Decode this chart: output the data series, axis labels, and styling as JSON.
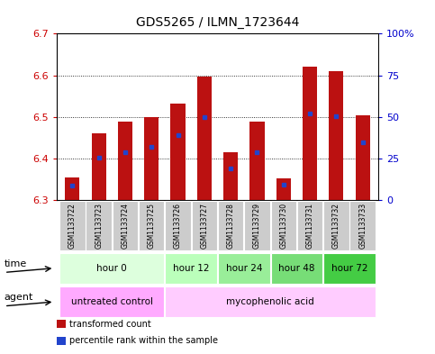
{
  "title": "GDS5265 / ILMN_1723644",
  "samples": [
    "GSM1133722",
    "GSM1133723",
    "GSM1133724",
    "GSM1133725",
    "GSM1133726",
    "GSM1133727",
    "GSM1133728",
    "GSM1133729",
    "GSM1133730",
    "GSM1133731",
    "GSM1133732",
    "GSM1133733"
  ],
  "bar_bottoms": [
    6.3,
    6.3,
    6.3,
    6.3,
    6.3,
    6.3,
    6.3,
    6.3,
    6.3,
    6.3,
    6.3,
    6.3
  ],
  "bar_tops": [
    6.355,
    6.46,
    6.488,
    6.5,
    6.532,
    6.597,
    6.415,
    6.488,
    6.353,
    6.62,
    6.61,
    6.504
  ],
  "blue_marks": [
    6.335,
    6.401,
    6.415,
    6.428,
    6.457,
    6.499,
    6.376,
    6.415,
    6.336,
    6.508,
    6.502,
    6.439
  ],
  "ylim": [
    6.3,
    6.7
  ],
  "yticks_left": [
    6.3,
    6.4,
    6.5,
    6.6,
    6.7
  ],
  "ytick_right_labels": [
    "0",
    "25",
    "50",
    "75",
    "100%"
  ],
  "bar_color": "#bb1111",
  "blue_color": "#2244cc",
  "plot_bg": "#ffffff",
  "sample_box_color": "#cccccc",
  "time_groups": [
    {
      "label": "hour 0",
      "start": 0,
      "end": 4,
      "color": "#ddffdd"
    },
    {
      "label": "hour 12",
      "start": 4,
      "end": 6,
      "color": "#bbffbb"
    },
    {
      "label": "hour 24",
      "start": 6,
      "end": 8,
      "color": "#99ee99"
    },
    {
      "label": "hour 48",
      "start": 8,
      "end": 10,
      "color": "#77dd77"
    },
    {
      "label": "hour 72",
      "start": 10,
      "end": 12,
      "color": "#44cc44"
    }
  ],
  "agent_groups": [
    {
      "label": "untreated control",
      "start": 0,
      "end": 4,
      "color": "#ffaaff"
    },
    {
      "label": "mycophenolic acid",
      "start": 4,
      "end": 12,
      "color": "#ffccff"
    }
  ],
  "legend_items": [
    {
      "color": "#bb1111",
      "label": "transformed count"
    },
    {
      "color": "#2244cc",
      "label": "percentile rank within the sample"
    }
  ],
  "left_tick_color": "#cc0000",
  "right_tick_color": "#0000cc"
}
